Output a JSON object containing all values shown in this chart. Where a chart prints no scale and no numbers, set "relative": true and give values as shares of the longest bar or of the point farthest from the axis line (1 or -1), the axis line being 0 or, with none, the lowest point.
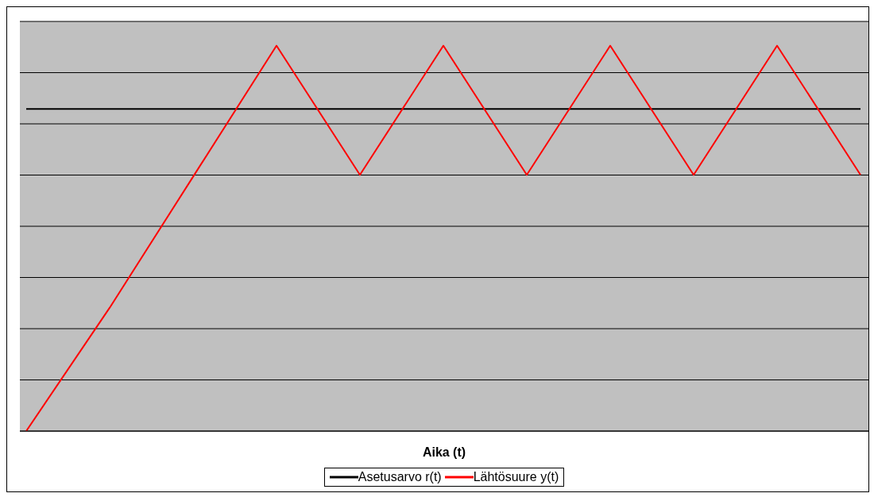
{
  "chart_data": {
    "type": "line",
    "relative": true,
    "xlabel": "Aika (t)",
    "categories": [
      null,
      null,
      null,
      null,
      null,
      null,
      null,
      null,
      null,
      null,
      null
    ],
    "series": [
      {
        "name": "Asetusarvo r(t)",
        "color": "#000000",
        "values": [
          0.836,
          0.836,
          0.836,
          0.836,
          0.836,
          0.836,
          0.836,
          0.836,
          0.836,
          0.836,
          0.836
        ]
      },
      {
        "name": "Lähtösuure y(t)",
        "color": "#ff0000",
        "values": [
          0,
          0.32,
          0.66,
          1,
          0.665,
          1,
          0.665,
          1,
          0.665,
          1,
          0.665
        ]
      }
    ],
    "grid": "y",
    "legend": "bottom",
    "marker": "none",
    "line_style": "solid"
  }
}
